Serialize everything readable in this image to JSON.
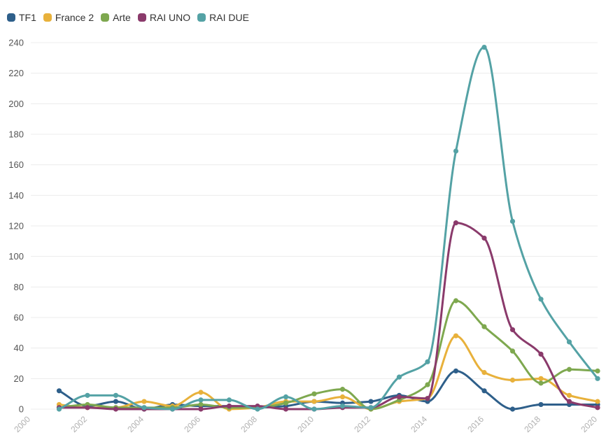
{
  "chart_data": {
    "type": "line",
    "title": "",
    "xlabel": "",
    "ylabel": "",
    "xlim": [
      2000,
      2020
    ],
    "ylim": [
      0,
      240
    ],
    "x_ticks": [
      2000,
      2002,
      2004,
      2006,
      2008,
      2010,
      2012,
      2014,
      2016,
      2018,
      2020
    ],
    "y_ticks": [
      0,
      20,
      40,
      60,
      80,
      100,
      120,
      140,
      160,
      180,
      200,
      220,
      240
    ],
    "grid": true,
    "legend_position": "top-left",
    "x": [
      2001,
      2002,
      2003,
      2004,
      2005,
      2006,
      2007,
      2008,
      2009,
      2010,
      2011,
      2012,
      2013,
      2014,
      2015,
      2016,
      2017,
      2018,
      2019,
      2020
    ],
    "series": [
      {
        "name": "TF1",
        "color": "#2e5f8a",
        "values": [
          12,
          2,
          5,
          0,
          3,
          2,
          2,
          1,
          2,
          5,
          4,
          5,
          9,
          5,
          25,
          12,
          0,
          3,
          3,
          3
        ]
      },
      {
        "name": "France 2",
        "color": "#e8b13b",
        "values": [
          3,
          1,
          1,
          5,
          2,
          11,
          0,
          1,
          5,
          5,
          8,
          0,
          5,
          7,
          48,
          24,
          19,
          20,
          9,
          5
        ]
      },
      {
        "name": "Arte",
        "color": "#7ea84f",
        "values": [
          1,
          3,
          1,
          1,
          1,
          3,
          1,
          1,
          4,
          10,
          13,
          0,
          6,
          16,
          71,
          54,
          38,
          17,
          26,
          25
        ]
      },
      {
        "name": "RAI UNO",
        "color": "#8a3a6b",
        "values": [
          1,
          1,
          0,
          0,
          0,
          0,
          2,
          2,
          0,
          0,
          1,
          1,
          8,
          7,
          122,
          112,
          52,
          36,
          5,
          1
        ]
      },
      {
        "name": "RAI DUE",
        "color": "#54a2a5",
        "values": [
          0,
          9,
          9,
          1,
          0,
          6,
          6,
          0,
          8,
          0,
          2,
          1,
          21,
          31,
          169,
          237,
          123,
          72,
          44,
          20
        ]
      }
    ]
  }
}
